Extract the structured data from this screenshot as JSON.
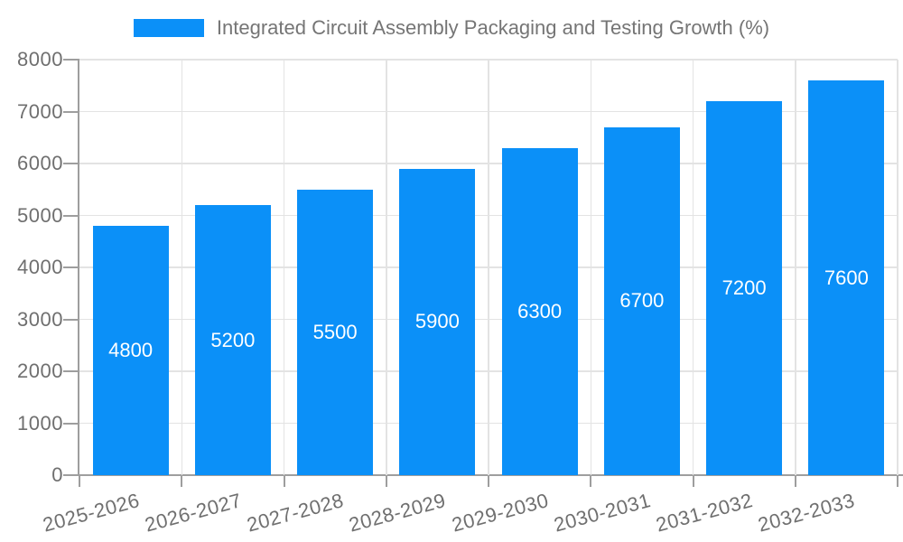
{
  "legend": {
    "label": "Integrated Circuit Assembly Packaging and Testing Growth (%)"
  },
  "chart_data": {
    "type": "bar",
    "title": "Integrated Circuit Assembly Packaging and Testing Growth (%)",
    "series_name": "Integrated Circuit Assembly Packaging and Testing Growth (%)",
    "categories": [
      "2025-2026",
      "2026-2027",
      "2027-2028",
      "2028-2029",
      "2029-2030",
      "2030-2031",
      "2031-2032",
      "2032-2033"
    ],
    "values": [
      4800,
      5200,
      5500,
      5900,
      6300,
      6700,
      7200,
      7600
    ],
    "bar_value_labels": [
      "4800",
      "5200",
      "5500",
      "5900",
      "6300",
      "6700",
      "7200",
      "7600"
    ],
    "xlabel": "",
    "ylabel": "",
    "ylim": [
      0,
      8000
    ],
    "y_tick_interval": 1000,
    "y_tick_labels": [
      "0",
      "1000",
      "2000",
      "3000",
      "4000",
      "5000",
      "6000",
      "7000",
      "8000"
    ],
    "grid": true,
    "legend_position": "top-center",
    "bar_label_position": "inside-center",
    "x_label_rotation_deg": -15,
    "colors": {
      "bar": "#0B90F8",
      "bar_label_text": "#FFFFFF",
      "axis_text": "#6F6F6F",
      "legend_text": "#757575",
      "grid_line": "#E3E3E3",
      "axis_line": "#9E9E9E",
      "background": "#FFFFFF"
    }
  }
}
